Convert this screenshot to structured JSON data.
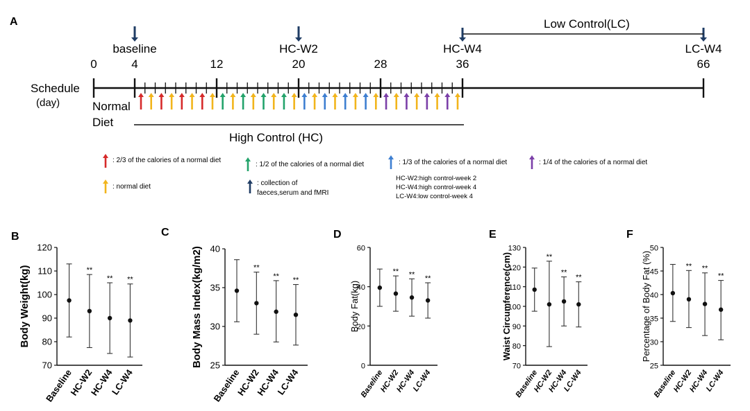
{
  "panel_labels": [
    "A",
    "B",
    "C",
    "D",
    "E",
    "F"
  ],
  "timeline": {
    "schedule_label": "Schedule",
    "day_label": "(day)",
    "normal_label": "Normal",
    "diet_label": "Diet",
    "high_control_label": "High Control  (HC)",
    "low_control_label": "Low Control(LC)",
    "major_ticks": [
      0,
      4,
      12,
      20,
      28,
      36,
      66
    ],
    "markers": [
      {
        "day": 4,
        "label": "baseline"
      },
      {
        "day": 20,
        "label": "HC-W2"
      },
      {
        "day": 36,
        "label": "HC-W4"
      },
      {
        "day": 66,
        "label": "LC-W4"
      }
    ],
    "low_control_range": [
      36,
      66
    ],
    "high_control_range": [
      4,
      36
    ],
    "diet_arrows": [
      "red",
      "orange",
      "red",
      "orange",
      "red",
      "orange",
      "red",
      "orange",
      "green",
      "orange",
      "green",
      "orange",
      "green",
      "orange",
      "green",
      "orange",
      "blue",
      "orange",
      "blue",
      "orange",
      "blue",
      "orange",
      "blue",
      "orange",
      "purple",
      "orange",
      "purple",
      "orange",
      "purple",
      "orange",
      "purple",
      "orange"
    ],
    "colors": {
      "red": "#d62a2a",
      "orange": "#f2b51c",
      "green": "#23a36b",
      "blue": "#3e7fd1",
      "purple": "#7b3fa8",
      "navy": "#1f3c64"
    }
  },
  "legend": {
    "red": ": 2/3 of the calories of a normal diet",
    "green": ": 1/2 of the calories of a normal diet",
    "blue": ": 1/3 of the calories of a normal diet",
    "purple": ": 1/4 of the calories of a normal diet",
    "orange": ": normal diet",
    "navy_line1": ": collection of",
    "navy_line2": "faeces,serum and fMRI",
    "abbr": [
      "HC-W2:high control-week 2",
      "HC-W4:high control-week 4",
      "LC-W4:low control-week 4"
    ]
  },
  "chart_data": [
    {
      "panel": "B",
      "type": "scatter",
      "categories": [
        "Baseline",
        "HC-W2",
        "HC-W4",
        "LC-W4"
      ],
      "values": [
        97.5,
        93,
        90,
        89
      ],
      "error_low": [
        82,
        77.5,
        75,
        73.5
      ],
      "error_high": [
        113,
        108.5,
        105,
        104.5
      ],
      "significance": [
        "",
        "**",
        "**",
        "**"
      ],
      "ylabel": "Body Weight(kg)",
      "ylim": [
        70,
        120
      ],
      "yticks": [
        70,
        80,
        90,
        100,
        110,
        120
      ]
    },
    {
      "panel": "C",
      "type": "scatter",
      "categories": [
        "Baseline",
        "HC-W2",
        "HC-W4",
        "LC-W4"
      ],
      "values": [
        34.6,
        33,
        31.9,
        31.5
      ],
      "error_low": [
        30.6,
        29,
        28,
        27.6
      ],
      "error_high": [
        38.6,
        37,
        35.9,
        35.4
      ],
      "significance": [
        "",
        "**",
        "**",
        "**"
      ],
      "ylabel": "Body Mass Index(kg/m2)",
      "ylim": [
        25,
        40
      ],
      "yticks": [
        25,
        30,
        35,
        40
      ]
    },
    {
      "panel": "D",
      "type": "scatter",
      "categories": [
        "Baseline",
        "HC-W2",
        "HC-W4",
        "LC-W4"
      ],
      "values": [
        39.5,
        36.5,
        34.5,
        33
      ],
      "error_low": [
        30,
        27.5,
        25,
        24
      ],
      "error_high": [
        49,
        45.5,
        44,
        42
      ],
      "significance": [
        "",
        "**",
        "**",
        "**"
      ],
      "ylabel": "Body Fat(kg)",
      "ylim": [
        0,
        60
      ],
      "yticks": [
        0,
        20,
        40,
        60
      ]
    },
    {
      "panel": "E",
      "type": "scatter",
      "categories": [
        "Baseline",
        "HC-W2",
        "HC-W4",
        "LC-W4"
      ],
      "values": [
        108.5,
        101,
        102.5,
        101
      ],
      "error_low": [
        97.5,
        79.5,
        90,
        89.5
      ],
      "error_high": [
        119.5,
        123,
        115,
        112.5
      ],
      "significance": [
        "",
        "**",
        "**",
        "**"
      ],
      "ylabel": "Waist Circumference(cm)",
      "ylim": [
        70,
        130
      ],
      "yticks": [
        70,
        80,
        90,
        100,
        110,
        120,
        130
      ]
    },
    {
      "panel": "F",
      "type": "scatter",
      "categories": [
        "Baseline",
        "HC-W2",
        "HC-W4",
        "LC-W4"
      ],
      "values": [
        40.3,
        39,
        38,
        36.8
      ],
      "error_low": [
        34.3,
        33,
        31.3,
        30.4
      ],
      "error_high": [
        46.4,
        45.1,
        44.6,
        43
      ],
      "significance": [
        "",
        "**",
        "**",
        "**"
      ],
      "ylabel": "Percentage of Body Fat (%)",
      "ylim": [
        25,
        50
      ],
      "yticks": [
        25,
        30,
        35,
        40,
        45,
        50
      ]
    }
  ]
}
